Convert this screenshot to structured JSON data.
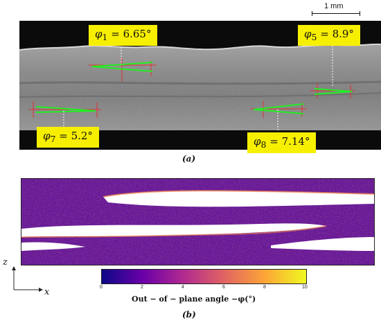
{
  "scale": {
    "label": "1 mm"
  },
  "panel_a": {
    "caption": "(a)",
    "tags": [
      {
        "sym": "φ",
        "sub": "1",
        "value": " = 6.65°"
      },
      {
        "sym": "φ",
        "sub": "5",
        "value": " = 8.9°"
      },
      {
        "sym": "φ",
        "sub": "7",
        "value": " = 5.2°"
      },
      {
        "sym": "φ",
        "sub": "8",
        "value": " = 7.14°"
      }
    ]
  },
  "panel_b": {
    "caption": "(b)",
    "colorbar": {
      "ticks": [
        "0",
        "2",
        "4",
        "6",
        "8",
        "10"
      ],
      "label": "Out − of − plane angle −φ(°)",
      "colors": [
        "#0d0887",
        "#6a00a8",
        "#b12a90",
        "#e16462",
        "#fca636",
        "#f0f921"
      ]
    },
    "axes": {
      "z": "z",
      "x": "x"
    }
  }
}
